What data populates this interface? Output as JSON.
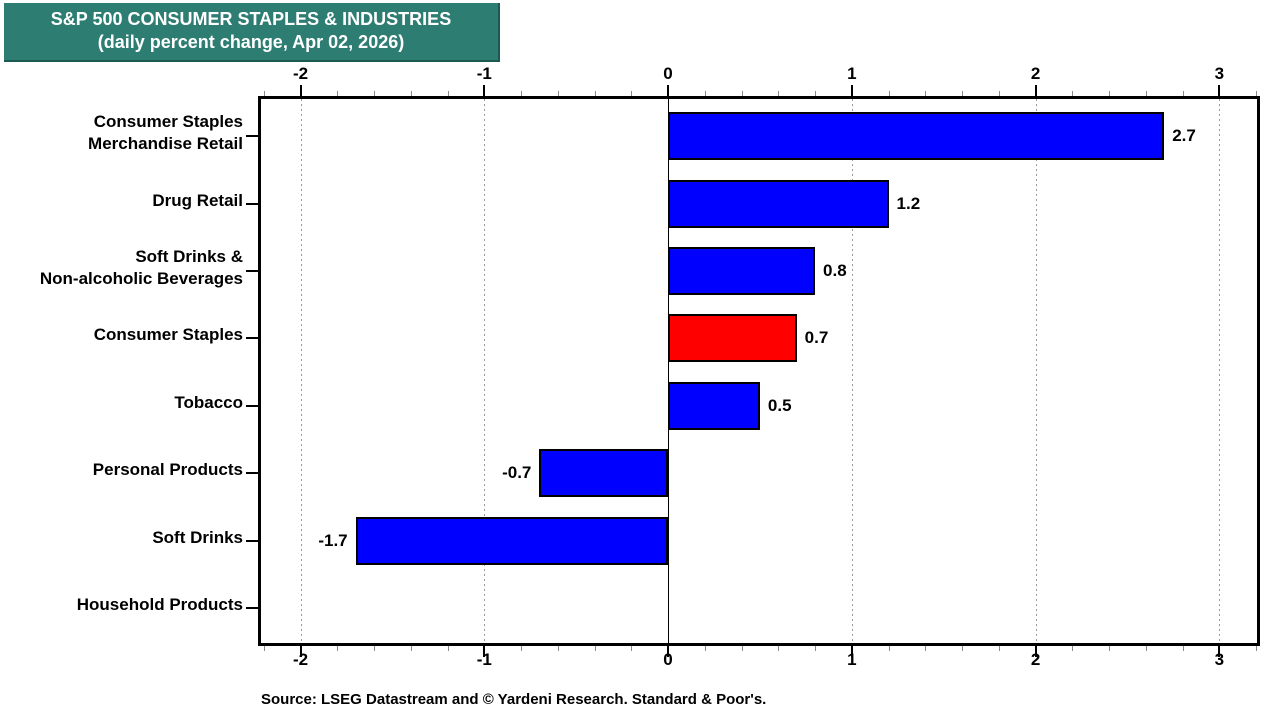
{
  "title": {
    "line1": "S&P 500 CONSUMER STAPLES & INDUSTRIES",
    "line2": "(daily percent change, Apr 02, 2026)"
  },
  "source": "Source: LSEG Datastream and © Yardeni Research. Standard & Poor's.",
  "colors": {
    "banner_bg": "#2E7D73",
    "banner_text": "#FFFFFF",
    "bar_blue": "#0000FF",
    "bar_red": "#FF0000",
    "bar_border": "#000000",
    "grid": "#9A9A9A",
    "zero_line": "#000000"
  },
  "chart_data": {
    "type": "bar",
    "orientation": "horizontal",
    "title": "S&P 500 CONSUMER STAPLES & INDUSTRIES (daily percent change, Apr 02, 2026)",
    "categories": [
      "Consumer Staples\nMerchandise Retail",
      "Drug Retail",
      "Soft Drinks &\nNon-alcoholic Beverages",
      "Consumer Staples",
      "Tobacco",
      "Personal Products",
      "Soft Drinks",
      "Household Products"
    ],
    "values": [
      2.7,
      1.2,
      0.8,
      0.7,
      0.5,
      -0.7,
      -1.7,
      0.0
    ],
    "bar_labels": [
      "2.7",
      "1.2",
      "0.8",
      "0.7",
      "0.5",
      "-0.7",
      "-1.7",
      ""
    ],
    "bar_colors": [
      "blue",
      "blue",
      "blue",
      "red",
      "blue",
      "blue",
      "blue",
      "none"
    ],
    "xlabel": "",
    "ylabel": "",
    "xlim": [
      -2.215,
      3.205
    ],
    "x_ticks": [
      -2,
      -1,
      0,
      1,
      2,
      3
    ],
    "x_tick_labels": [
      "-2",
      "-1",
      "0",
      "1",
      "2",
      "3"
    ],
    "minor_tick_step": 0.2,
    "grid": "vertical dotted gridlines at major ticks, solid black line at zero",
    "legend": "none"
  }
}
